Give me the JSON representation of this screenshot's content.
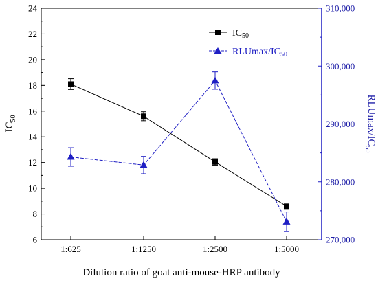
{
  "chart_data": {
    "type": "line",
    "title": "",
    "categories": [
      "1:625",
      "1:1250",
      "1:2500",
      "1:5000"
    ],
    "xlabel": "Dilution ratio of goat anti-mouse-HRP antibody",
    "ylabel_left": {
      "main": "IC",
      "sub": "50"
    },
    "ylabel_right": {
      "main": "RLUmax/IC",
      "sub": "50"
    },
    "y_left": {
      "min": 6,
      "max": 24,
      "ticks": [
        "6",
        "8",
        "10",
        "12",
        "14",
        "16",
        "18",
        "20",
        "22",
        "24"
      ]
    },
    "y_right": {
      "min": 270000,
      "max": 310000,
      "ticks": [
        "270,000",
        "280,000",
        "290,000",
        "300,000",
        "310,000"
      ]
    },
    "series": [
      {
        "name_main": "IC",
        "name_sub": "50",
        "axis": "left",
        "marker": "square",
        "color": "#000000",
        "values": [
          18.1,
          15.6,
          12.05,
          8.6
        ],
        "errors": [
          0.42,
          0.35,
          0.25,
          0.12
        ]
      },
      {
        "name_main": "RLUmax/IC",
        "name_sub": "50",
        "axis": "right",
        "marker": "triangle",
        "color": "#1f1fc4",
        "values": [
          284300,
          282900,
          297500,
          273100
        ],
        "errors": [
          1600,
          1500,
          1500,
          1700
        ]
      }
    ],
    "legend_position": "top-right",
    "grid": false
  }
}
